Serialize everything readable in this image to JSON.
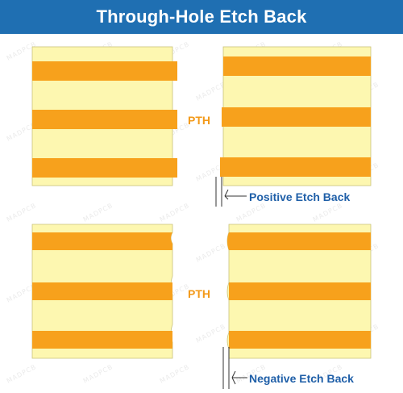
{
  "title": "Through-Hole Etch Back",
  "labels": {
    "pth_top": "PTH",
    "pth_bottom": "PTH",
    "positive": "Positive Etch Back",
    "negative": "Negative Etch Back"
  },
  "watermark": "MADPCB",
  "colors": {
    "title_bg": "#1f6fb2",
    "title_text": "#ffffff",
    "dielectric": "#fdf7b0",
    "dielectric_edge": "#c9c27a",
    "copper": "#f7a11c",
    "label_orange": "#f39a1a",
    "label_blue": "#1f5fa8",
    "leader": "#333333"
  }
}
